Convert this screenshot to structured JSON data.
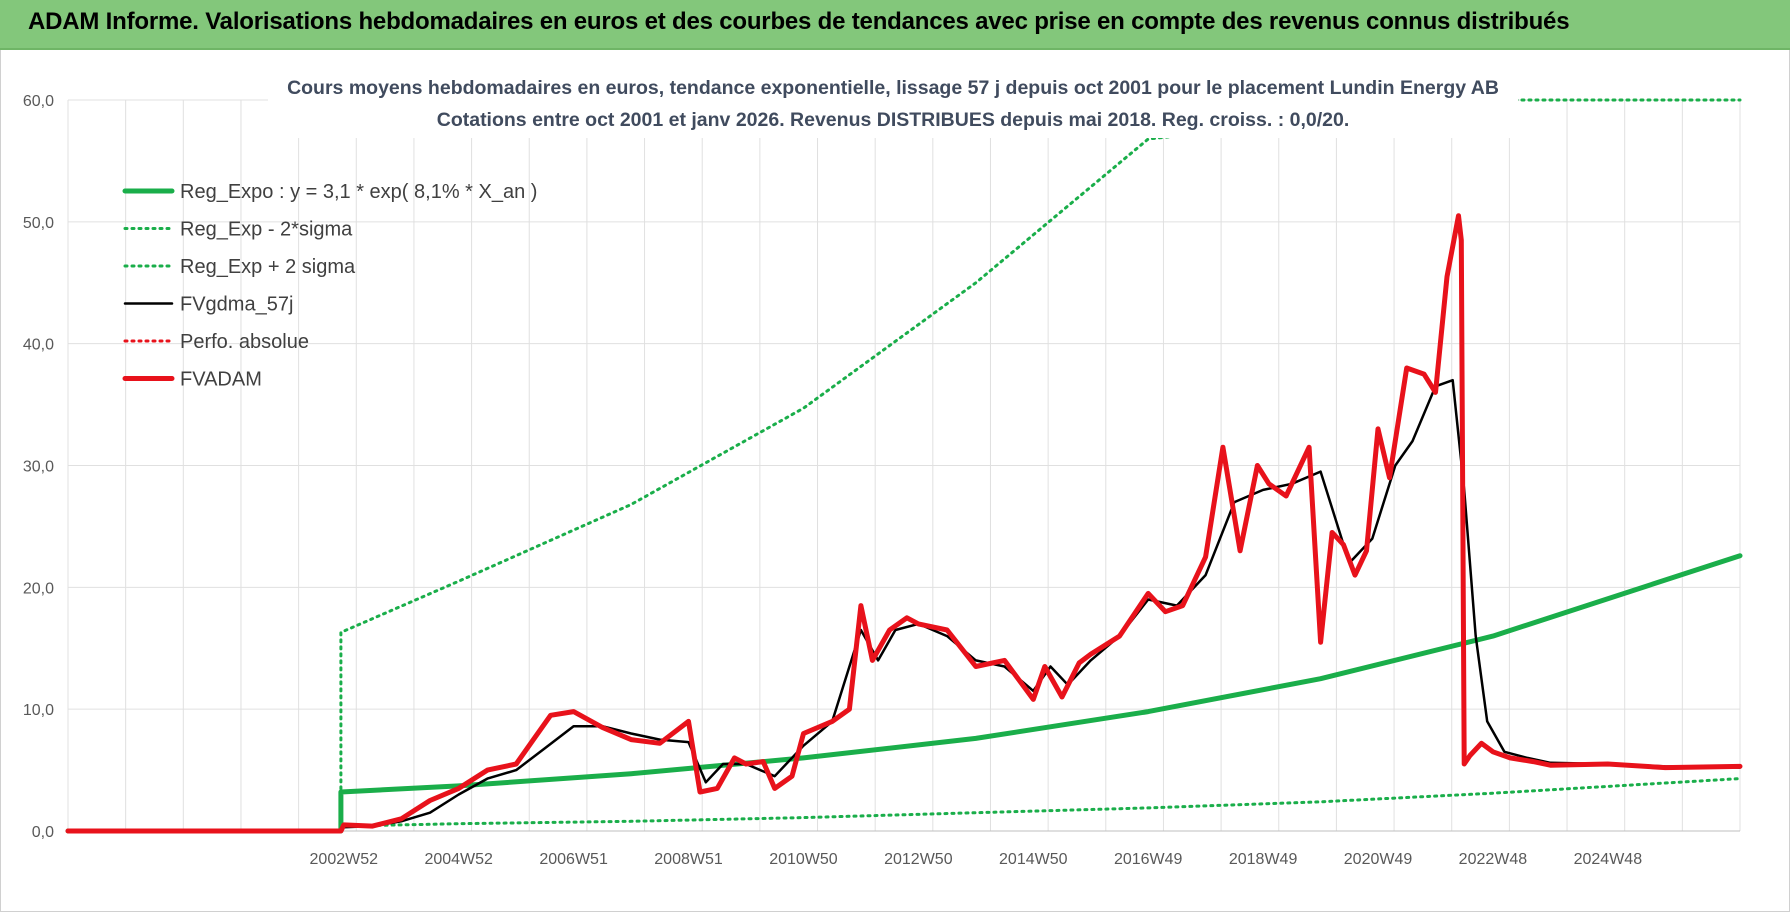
{
  "banner": {
    "title": "ADAM Informe. Valorisations hebdomadaires en euros et des courbes de tendances avec prise en compte des revenus connus distribués"
  },
  "chart_data": {
    "type": "line",
    "title": "Cours moyens hebdomadaires en euros, tendance exponentielle, lissage 57 j depuis oct 2001 pour le placement Lundin Energy AB",
    "subtitle": "Cotations entre oct 2001 et janv 2026. Revenus DISTRIBUES depuis mai 2018. Reg. croiss. : 0,0/20.",
    "xlabel": "",
    "ylabel": "",
    "ylim": [
      0,
      60
    ],
    "xlim": [
      1998.2,
      2027.3
    ],
    "grid": true,
    "legend_position": "top-left",
    "y_ticks": [
      "0,0",
      "10,0",
      "20,0",
      "30,0",
      "40,0",
      "50,0",
      "60,0"
    ],
    "x_ticks": [
      {
        "label": "2002W52",
        "x": 2003.0
      },
      {
        "label": "2004W52",
        "x": 2005.0
      },
      {
        "label": "2006W51",
        "x": 2007.0
      },
      {
        "label": "2008W51",
        "x": 2009.0
      },
      {
        "label": "2010W50",
        "x": 2011.0
      },
      {
        "label": "2012W50",
        "x": 2013.0
      },
      {
        "label": "2014W50",
        "x": 2015.0
      },
      {
        "label": "2016W49",
        "x": 2017.0
      },
      {
        "label": "2018W49",
        "x": 2019.0
      },
      {
        "label": "2020W49",
        "x": 2021.0
      },
      {
        "label": "2022W48",
        "x": 2023.0
      },
      {
        "label": "2024W48",
        "x": 2025.0
      }
    ],
    "series": [
      {
        "name": "Reg_Expo : y = 3,1 * exp( 8,1% *  X_an )",
        "color": "#1aae4a",
        "style": "solid-thick",
        "x": [
          1998.2,
          2002.95,
          2002.95,
          2005,
          2008,
          2011,
          2014,
          2017,
          2020,
          2023,
          2027.3
        ],
        "y": [
          0,
          0,
          3.2,
          3.7,
          4.7,
          6.0,
          7.6,
          9.8,
          12.5,
          16.0,
          22.6
        ]
      },
      {
        "name": "Reg_Exp - 2*sigma",
        "color": "#1aae4a",
        "style": "dotted",
        "x": [
          1998.2,
          2002.95,
          2002.95,
          2005,
          2008,
          2011,
          2014,
          2017,
          2020,
          2023,
          2027.3
        ],
        "y": [
          0,
          0,
          0.4,
          0.6,
          0.8,
          1.1,
          1.5,
          1.9,
          2.4,
          3.1,
          4.3
        ]
      },
      {
        "name": "Reg_Exp + 2 sigma",
        "color": "#1aae4a",
        "style": "dotted",
        "x": [
          1998.2,
          2002.95,
          2002.95,
          2005,
          2008,
          2011,
          2014,
          2017,
          2019.4,
          2020.0,
          2027.3
        ],
        "y": [
          0,
          0,
          16.3,
          20.5,
          26.8,
          34.7,
          45.0,
          56.8,
          58.0,
          60.0,
          60.0
        ]
      },
      {
        "name": "FVgdma_57j",
        "color": "#000000",
        "style": "solid",
        "x": [
          1998.2,
          2002.95,
          2003.0,
          2003.5,
          2004.0,
          2004.5,
          2005.0,
          2005.5,
          2006.0,
          2006.5,
          2007.0,
          2007.5,
          2008.0,
          2008.5,
          2009.0,
          2009.3,
          2009.6,
          2010.0,
          2010.5,
          2011.0,
          2011.5,
          2012.0,
          2012.3,
          2012.6,
          2013.0,
          2013.5,
          2014.0,
          2014.5,
          2015.0,
          2015.3,
          2015.6,
          2016.0,
          2016.5,
          2017.0,
          2017.5,
          2018.0,
          2018.5,
          2019.0,
          2019.5,
          2020.0,
          2020.5,
          2020.9,
          2021.3,
          2021.6,
          2022.0,
          2022.3,
          2022.5,
          2022.7,
          2022.9,
          2023.2,
          2023.6,
          2024.0,
          2025.0,
          2026.0,
          2027.3
        ],
        "y": [
          0,
          0,
          0.3,
          0.4,
          0.8,
          1.5,
          3.0,
          4.3,
          5.0,
          6.8,
          8.6,
          8.6,
          8.0,
          7.5,
          7.3,
          4.0,
          5.5,
          5.5,
          4.5,
          7.0,
          9.0,
          16.5,
          14.0,
          16.5,
          17.0,
          16.0,
          14.0,
          13.5,
          11.5,
          13.5,
          12.0,
          14.0,
          16.0,
          19.0,
          18.5,
          21.0,
          27.0,
          28.0,
          28.5,
          29.5,
          22.0,
          24.0,
          30.0,
          32.0,
          36.5,
          37.0,
          28.0,
          16.0,
          9.0,
          6.5,
          6.0,
          5.6,
          5.5,
          5.3,
          5.2
        ]
      },
      {
        "name": "Perfo. absolue",
        "color": "#e8121b",
        "style": "dotted",
        "x": [],
        "y": []
      },
      {
        "name": "FVADAM",
        "color": "#e8121b",
        "style": "solid-thick",
        "x": [
          1998.2,
          2002.95,
          2003.0,
          2003.5,
          2004.0,
          2004.5,
          2005.0,
          2005.5,
          2006.0,
          2006.3,
          2006.6,
          2007.0,
          2007.5,
          2008.0,
          2008.5,
          2009.0,
          2009.2,
          2009.5,
          2009.8,
          2010.0,
          2010.3,
          2010.5,
          2010.8,
          2011.0,
          2011.5,
          2011.8,
          2012.0,
          2012.2,
          2012.5,
          2012.8,
          2013.0,
          2013.5,
          2014.0,
          2014.5,
          2015.0,
          2015.2,
          2015.5,
          2015.8,
          2016.0,
          2016.5,
          2017.0,
          2017.3,
          2017.6,
          2018.0,
          2018.3,
          2018.6,
          2018.9,
          2019.1,
          2019.4,
          2019.8,
          2020.0,
          2020.2,
          2020.4,
          2020.6,
          2020.8,
          2021.0,
          2021.2,
          2021.5,
          2021.8,
          2022.0,
          2022.2,
          2022.4,
          2022.45,
          2022.5,
          2022.6,
          2022.8,
          2023.0,
          2023.3,
          2023.7,
          2024.0,
          2025.0,
          2026.0,
          2027.3
        ],
        "y": [
          0,
          0,
          0.5,
          0.4,
          1.0,
          2.5,
          3.5,
          5.0,
          5.5,
          7.5,
          9.5,
          9.8,
          8.5,
          7.5,
          7.2,
          9.0,
          3.2,
          3.5,
          6.0,
          5.5,
          5.7,
          3.5,
          4.5,
          8.0,
          9.0,
          10.0,
          18.5,
          14.0,
          16.5,
          17.5,
          17.0,
          16.5,
          13.5,
          14.0,
          10.8,
          13.5,
          11.0,
          13.8,
          14.5,
          16.0,
          19.5,
          18.0,
          18.5,
          22.5,
          31.5,
          23.0,
          30.0,
          28.5,
          27.5,
          31.5,
          15.5,
          24.5,
          23.5,
          21.0,
          23.0,
          33.0,
          29.0,
          38.0,
          37.5,
          36.0,
          45.5,
          50.5,
          48.5,
          5.5,
          6.2,
          7.2,
          6.5,
          6.0,
          5.7,
          5.4,
          5.5,
          5.2,
          5.3
        ]
      }
    ]
  }
}
